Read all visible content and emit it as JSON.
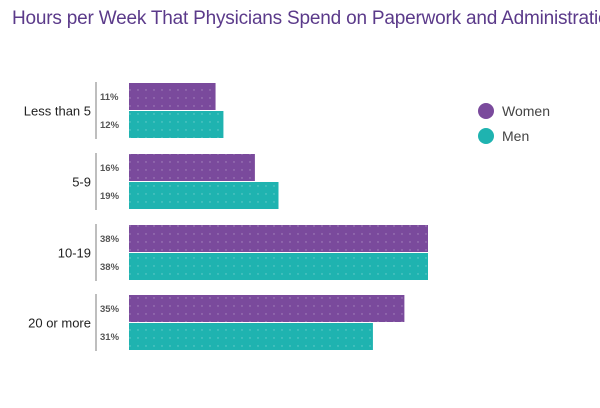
{
  "chart_data": {
    "type": "bar",
    "orientation": "horizontal",
    "title": "Hours per Week That Physicians Spend on Paperwork and Administration",
    "categories": [
      "Less than 5",
      "5-9",
      "10-19",
      "20 or more"
    ],
    "series": [
      {
        "name": "Women",
        "color": "#7a4a9c",
        "values": [
          11,
          16,
          38,
          35
        ],
        "labels": [
          "11%",
          "16%",
          "38%",
          "35%"
        ]
      },
      {
        "name": "Men",
        "color": "#1fb3b0",
        "values": [
          12,
          19,
          38,
          31
        ],
        "labels": [
          "12%",
          "19%",
          "38%",
          "31%"
        ]
      }
    ],
    "unit": "%",
    "xlim": [
      0,
      38
    ],
    "grid": false,
    "legend_position": "right"
  }
}
